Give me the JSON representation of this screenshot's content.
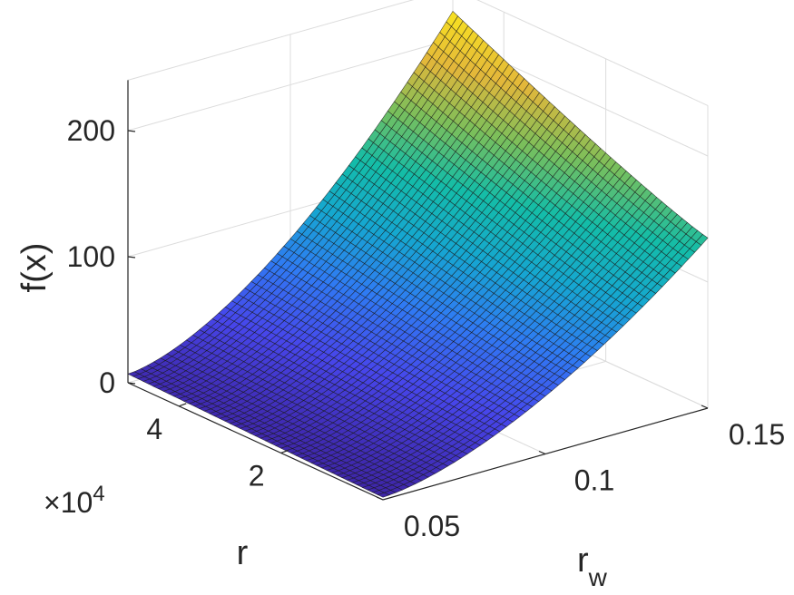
{
  "chart_data": {
    "type": "surface",
    "title": "",
    "xlabel": "r_w",
    "xlabel_main": "r",
    "xlabel_sub": "w",
    "ylabel": "r",
    "zlabel": "f(x)",
    "xlim": [
      0.05,
      0.15
    ],
    "ylim": [
      0,
      50000
    ],
    "zlim": [
      0,
      200
    ],
    "x_ticks": [
      0.05,
      0.1,
      0.15
    ],
    "x_tick_labels": [
      "0.05",
      "0.1",
      "0.15"
    ],
    "y_ticks": [
      20000,
      40000
    ],
    "y_tick_labels": [
      "2",
      "4"
    ],
    "y_exponent_label": "×10",
    "y_exponent_power": "4",
    "z_ticks": [
      0,
      100,
      200
    ],
    "z_tick_labels": [
      "0",
      "100",
      "200"
    ],
    "grid": true,
    "colormap": "parula",
    "colormap_stops": [
      "#3E26A8",
      "#4746EB",
      "#2F7BF3",
      "#15A7D0",
      "#14BDA7",
      "#7ABF5B",
      "#E3B73A",
      "#F9E420"
    ],
    "corner_values": {
      "rw_0.05_r_0": 2,
      "rw_0.05_r_50000": 7,
      "rw_0.15_r_0": 135,
      "rw_0.15_r_50000": 222
    }
  }
}
